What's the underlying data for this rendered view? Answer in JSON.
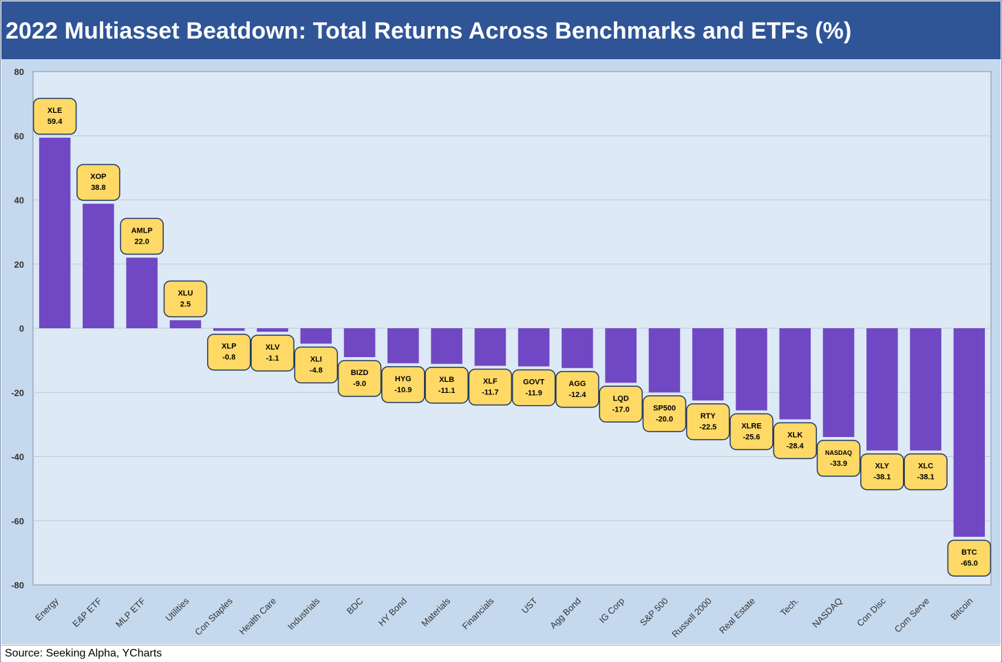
{
  "title": "2022 Multiasset Beatdown: Total Returns Across Benchmarks and ETFs (%)",
  "source": "Source: Seeking Alpha, YCharts",
  "colors": {
    "title_bg": "#2f5597",
    "outer_bg": "#c5d9ee",
    "plot_bg": "#dde9f5",
    "bar": "#7048c4",
    "label_fill": "#ffd966",
    "label_stroke": "#1f3864",
    "grid": "#bfc9d6"
  },
  "chart_data": {
    "type": "bar",
    "ylim": [
      -80,
      80
    ],
    "yticks": [
      80,
      60,
      40,
      20,
      0,
      -20,
      -40,
      -60,
      -80
    ],
    "grid": true,
    "legend": "none",
    "categories": [
      "Energy",
      "E&P ETF",
      "MLP ETF",
      "Utilities",
      "Con Staples",
      "Health Care",
      "Industrials",
      "BDC",
      "HY Bond",
      "Materials",
      "Financials",
      "UST",
      "Agg Bond",
      "IG Corp",
      "S&P 500",
      "Russell 2000",
      "Real Estate",
      "Tech.",
      "NASDAQ",
      "Con Disc",
      "Com Serve",
      "Bitcoin"
    ],
    "tickers": [
      "XLE",
      "XOP",
      "AMLP",
      "XLU",
      "XLP",
      "XLV",
      "XLI",
      "BIZD",
      "HYG",
      "XLB",
      "XLF",
      "GOVT",
      "AGG",
      "LQD",
      "SP500",
      "RTY",
      "XLRE",
      "XLK",
      "NASDAQ",
      "XLY",
      "XLC",
      "BTC"
    ],
    "value_labels": [
      "59.4",
      "38.8",
      "22.0",
      "2.5",
      "-0.8",
      "-1.1",
      "-4.8",
      "-9.0",
      "-10.9",
      "-11.1",
      "-11.7",
      "-11.9",
      "-12.4",
      "-17.0",
      "-20.0",
      "-22.5",
      "-25.6",
      "-28.4",
      "-33.9",
      "-38.1",
      "-38.1",
      "-65.0"
    ],
    "values": [
      59.4,
      38.8,
      22.0,
      2.5,
      -0.8,
      -1.1,
      -4.8,
      -9.0,
      -10.9,
      -11.1,
      -11.7,
      -11.9,
      -12.4,
      -17.0,
      -20.0,
      -22.5,
      -25.6,
      -28.4,
      -33.9,
      -38.1,
      -38.1,
      -65.0
    ]
  }
}
